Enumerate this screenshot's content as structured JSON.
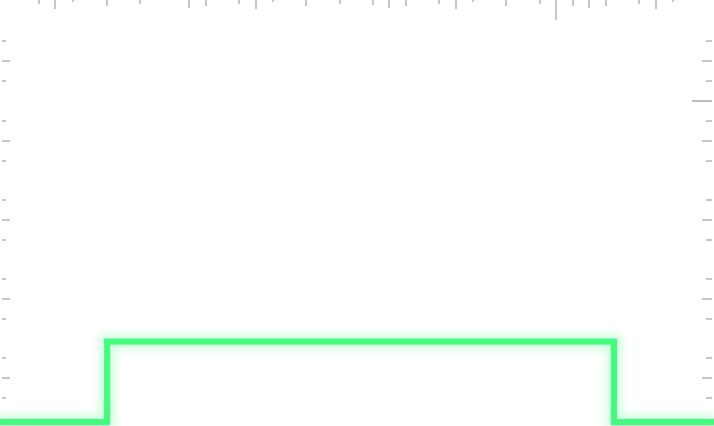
{
  "chart_data": {
    "type": "line",
    "title": "",
    "xlabel": "",
    "ylabel": "",
    "step": true,
    "grid": false,
    "series": [
      {
        "x": [
          0,
          15,
          15,
          86,
          86,
          100
        ],
        "y": [
          0,
          0,
          1,
          1,
          0,
          0
        ]
      }
    ],
    "xlim": [
      0,
      100
    ],
    "ylim": [
      0,
      5.25
    ]
  },
  "colors": {
    "signal": "#3dff7a",
    "background": "#ffffff",
    "ticks": "#8c8c8c"
  }
}
